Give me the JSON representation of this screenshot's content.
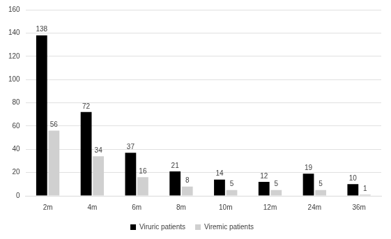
{
  "chart_data": {
    "type": "bar",
    "categories": [
      "2m",
      "4m",
      "6m",
      "8m",
      "10m",
      "12m",
      "24m",
      "36m"
    ],
    "series": [
      {
        "name": "Viruric patients",
        "color": "#000000",
        "values": [
          138,
          72,
          37,
          21,
          14,
          12,
          19,
          10
        ]
      },
      {
        "name": "Viremic patients",
        "color": "#d0d0d0",
        "values": [
          56,
          34,
          16,
          8,
          5,
          5,
          5,
          1
        ]
      }
    ],
    "ylim": [
      0,
      160
    ],
    "yticks": [
      0,
      20,
      40,
      60,
      80,
      100,
      120,
      140,
      160
    ],
    "grid": true,
    "legend": "bottom",
    "data_labels": true
  }
}
